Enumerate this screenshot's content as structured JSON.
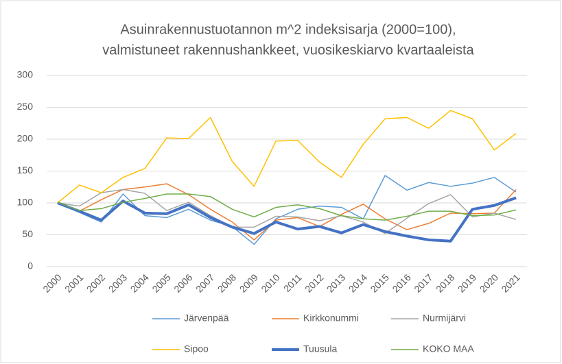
{
  "chart_data": {
    "type": "line",
    "title": [
      "Asuinrakennustuotannon m^2 indeksisarja (2000=100),",
      "valmistuneet rakennushankkeet, vuosikeskiarvo kvartaaleista"
    ],
    "categories": [
      "2000",
      "2001",
      "2002",
      "2003",
      "2004",
      "2005",
      "2006",
      "2007",
      "2008",
      "2009",
      "2010",
      "2011",
      "2012",
      "2013",
      "2014",
      "2015",
      "2016",
      "2017",
      "2018",
      "2019",
      "2020",
      "2021"
    ],
    "ylim": [
      0,
      300
    ],
    "yticks": [
      0,
      50,
      100,
      150,
      200,
      250,
      300
    ],
    "grid": true,
    "legend": "bottom",
    "series": [
      {
        "name": "Järvenpää",
        "color": "#5b9bd5",
        "width": 1.5,
        "values": [
          100,
          85,
          70,
          114,
          80,
          77,
          90,
          73,
          63,
          35,
          75,
          90,
          95,
          93,
          75,
          143,
          120,
          132,
          126,
          131,
          140,
          117
        ]
      },
      {
        "name": "Kirkkonummi",
        "color": "#ed7d31",
        "width": 1.5,
        "values": [
          100,
          87,
          105,
          121,
          125,
          130,
          113,
          90,
          70,
          42,
          73,
          77,
          63,
          82,
          98,
          75,
          58,
          68,
          84,
          83,
          84,
          121
        ]
      },
      {
        "name": "Nurmijärvi",
        "color": "#a5a5a5",
        "width": 1.5,
        "values": [
          100,
          95,
          116,
          121,
          115,
          88,
          101,
          80,
          62,
          62,
          79,
          78,
          72,
          80,
          70,
          52,
          76,
          99,
          113,
          78,
          84,
          74
        ]
      },
      {
        "name": "Sipoo",
        "color": "#ffc000",
        "width": 1.5,
        "values": [
          100,
          128,
          116,
          140,
          154,
          202,
          201,
          234,
          165,
          126,
          197,
          198,
          164,
          140,
          192,
          232,
          234,
          217,
          245,
          232,
          183,
          209
        ]
      },
      {
        "name": "Tuusula",
        "color": "#4472c4",
        "width": 4,
        "values": [
          100,
          87,
          73,
          103,
          84,
          83,
          97,
          77,
          62,
          52,
          70,
          59,
          63,
          53,
          66,
          55,
          48,
          42,
          40,
          90,
          96,
          108
        ]
      },
      {
        "name": "KOKO MAA",
        "color": "#70ad47",
        "width": 1.5,
        "values": [
          101,
          88,
          91,
          101,
          107,
          114,
          114,
          110,
          90,
          78,
          93,
          97,
          91,
          80,
          75,
          73,
          79,
          87,
          87,
          80,
          81,
          89
        ]
      }
    ]
  }
}
